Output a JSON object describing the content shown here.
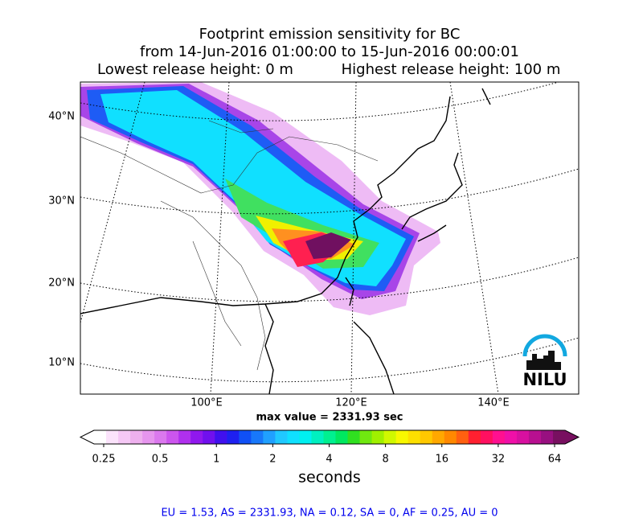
{
  "title": {
    "line1": "Footprint emission sensitivity for BC",
    "line2": "from 14-Jun-2016 01:00:00 to 15-Jun-2016 00:00:01",
    "lowest": "Lowest release height: 0 m",
    "highest": "Highest release height: 100 m"
  },
  "map": {
    "lat_labels": [
      "40°N",
      "30°N",
      "20°N",
      "10°N"
    ],
    "lon_labels": [
      "100°E",
      "120°E",
      "140°E"
    ],
    "max_value": "max value = 2331.93 sec",
    "logo": "NILU"
  },
  "colorbar": {
    "scale": "log",
    "lim": [
      0.25,
      64
    ],
    "ticks": [
      0.25,
      0.5,
      1,
      2,
      4,
      8,
      16,
      32,
      64
    ],
    "label": "seconds",
    "colors": [
      "#ffffff",
      "#fbe3fb",
      "#f5c8f5",
      "#eeb0ee",
      "#e695ee",
      "#db78ee",
      "#cc55ee",
      "#b030ee",
      "#9018ee",
      "#7010ee",
      "#4010ee",
      "#1e20f0",
      "#1050f5",
      "#1878fa",
      "#20a0ff",
      "#20c8ff",
      "#10e0ff",
      "#00f0f0",
      "#00f0c0",
      "#00f090",
      "#00e860",
      "#30e020",
      "#70e810",
      "#a0f000",
      "#d0f800",
      "#f8f800",
      "#fde000",
      "#ffc800",
      "#ffa800",
      "#ff8800",
      "#ff6010",
      "#ff2030",
      "#ff1060",
      "#ff1090",
      "#f010a8",
      "#d810a0",
      "#b81090",
      "#981080",
      "#781060"
    ]
  },
  "footer": "EU = 1.53,  AS = 2331.93,  NA = 0.12,  SA = 0,  AF = 0.25,  AU = 0"
}
